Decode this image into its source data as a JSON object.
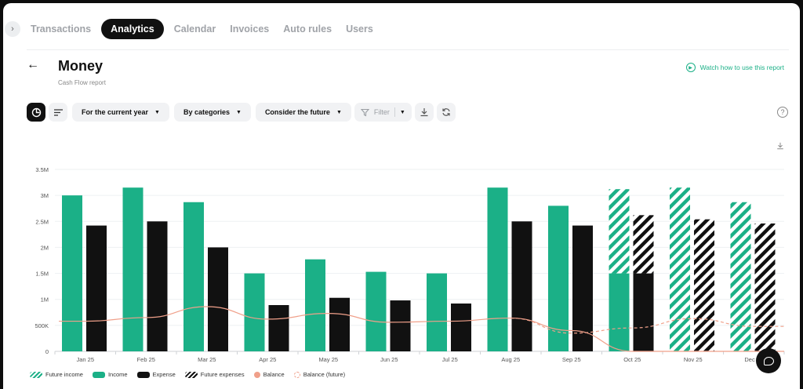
{
  "nav": {
    "tabs": [
      {
        "label": "Transactions"
      },
      {
        "label": "Analytics"
      },
      {
        "label": "Calendar"
      },
      {
        "label": "Invoices"
      },
      {
        "label": "Auto rules"
      },
      {
        "label": "Users"
      }
    ],
    "active_tab": "Analytics"
  },
  "header": {
    "title": "Money",
    "subtitle": "Cash Flow report",
    "watch_link": "Watch how to use this report"
  },
  "toolbar": {
    "period": "For the current year",
    "grouping": "By categories",
    "future": "Consider the future",
    "filter": "Filter"
  },
  "colors": {
    "income": "#1bb087",
    "expense": "#111111",
    "balance": "#f0a08a"
  },
  "icons": [
    "chevron-right-icon",
    "back-arrow-icon",
    "play-circle-icon",
    "pie-chart-icon",
    "sort-lines-icon",
    "funnel-icon",
    "download-icon",
    "refresh-icon",
    "help-icon",
    "chat-icon"
  ],
  "legend": {
    "future_income": "Future income",
    "income": "Income",
    "expense": "Expense",
    "future_expenses": "Future expenses",
    "balance": "Balance",
    "balance_future": "Balance (future)"
  },
  "chart_data": {
    "type": "bar",
    "categories": [
      "Jan 25",
      "Feb 25",
      "Mar 25",
      "Apr 25",
      "May 25",
      "Jun 25",
      "Jul 25",
      "Aug 25",
      "Sep 25",
      "Oct 25",
      "Nov 25",
      "Dec 25"
    ],
    "y_ticks": [
      "0",
      "500K",
      "1M",
      "1.5M",
      "2M",
      "2.5M",
      "3M",
      "3.5M"
    ],
    "ylim": [
      0,
      3500000
    ],
    "series": [
      {
        "name": "Income",
        "values": [
          3000000,
          3150000,
          2870000,
          1500000,
          1770000,
          1530000,
          1500000,
          3150000,
          2800000,
          1500000,
          0,
          0
        ]
      },
      {
        "name": "Future income",
        "values": [
          0,
          0,
          0,
          0,
          0,
          0,
          0,
          0,
          0,
          1620000,
          3150000,
          2870000
        ]
      },
      {
        "name": "Expense",
        "values": [
          2420000,
          2500000,
          2000000,
          890000,
          1030000,
          980000,
          920000,
          2500000,
          2420000,
          1500000,
          0,
          0
        ]
      },
      {
        "name": "Future expenses",
        "values": [
          0,
          0,
          0,
          0,
          0,
          0,
          0,
          0,
          0,
          1120000,
          2540000,
          2460000
        ]
      },
      {
        "name": "Balance",
        "values": [
          580000,
          650000,
          860000,
          620000,
          730000,
          560000,
          580000,
          640000,
          400000,
          0,
          0,
          0
        ]
      },
      {
        "name": "Balance (future)",
        "values": [
          null,
          null,
          null,
          null,
          null,
          null,
          null,
          640000,
          350000,
          450000,
          630000,
          480000
        ]
      }
    ],
    "grid": true
  }
}
